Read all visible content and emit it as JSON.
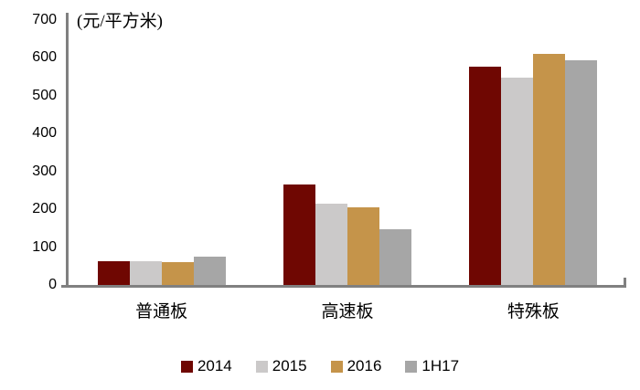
{
  "chart_data": {
    "type": "bar",
    "title": "",
    "unit_label": "(元/平方米)",
    "categories": [
      "普通板",
      "高速板",
      "特殊板"
    ],
    "series": [
      {
        "name": "2014",
        "color": "#6F0702",
        "values": [
          63,
          266,
          577
        ]
      },
      {
        "name": "2015",
        "color": "#CBC9C9",
        "values": [
          64,
          215,
          549
        ]
      },
      {
        "name": "2016",
        "color": "#C5944A",
        "values": [
          61,
          205,
          611
        ]
      },
      {
        "name": "1H17",
        "color": "#A6A6A6",
        "values": [
          74,
          148,
          593
        ]
      }
    ],
    "ylim": [
      0,
      700
    ],
    "yticks": [
      0,
      100,
      200,
      300,
      400,
      500,
      600,
      700
    ],
    "grid": false,
    "legend_position": "bottom",
    "axis_color": "#808080"
  }
}
